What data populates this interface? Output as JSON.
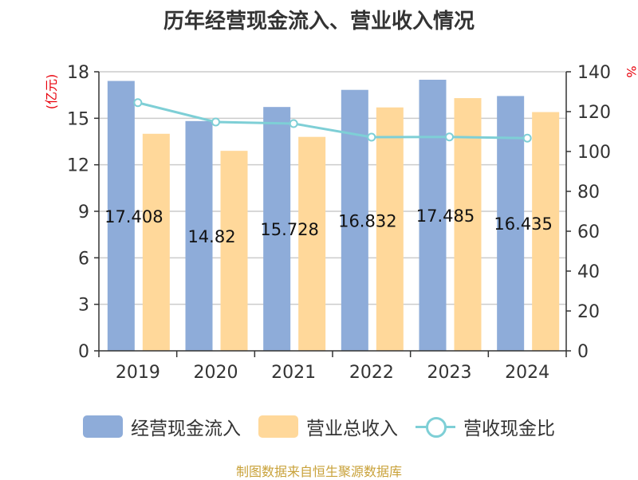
{
  "chart_data": {
    "type": "bar",
    "title": "历年经营现金流入、营业收入情况",
    "categories": [
      "2019",
      "2020",
      "2021",
      "2022",
      "2023",
      "2024"
    ],
    "y_left": {
      "unit": "(亿元)",
      "ylim": [
        0,
        18
      ],
      "ticks": [
        0,
        3,
        6,
        9,
        12,
        15,
        18
      ]
    },
    "y_right": {
      "unit": "%",
      "ylim": [
        0,
        140
      ],
      "ticks": [
        0,
        20,
        40,
        60,
        80,
        100,
        120,
        140
      ]
    },
    "series": [
      {
        "name": "经营现金流入",
        "axis": "left",
        "kind": "bar",
        "color": "#8eacd9",
        "values": [
          17.408,
          14.82,
          15.728,
          16.832,
          17.485,
          16.435
        ],
        "labels": [
          "17.408",
          "14.82",
          "15.728",
          "16.832",
          "17.485",
          "16.435"
        ]
      },
      {
        "name": "营业总收入",
        "axis": "left",
        "kind": "bar",
        "color": "#ffd89a",
        "values": [
          14.0,
          12.9,
          13.8,
          15.7,
          16.3,
          15.4
        ]
      },
      {
        "name": "营收现金比",
        "axis": "right",
        "kind": "line",
        "color": "#7ecfd6",
        "values": [
          124.5,
          114.8,
          114.0,
          107.2,
          107.3,
          106.7
        ]
      }
    ],
    "grid": true,
    "legend": "bottom"
  },
  "source": "制图数据来自恒生聚源数据库"
}
